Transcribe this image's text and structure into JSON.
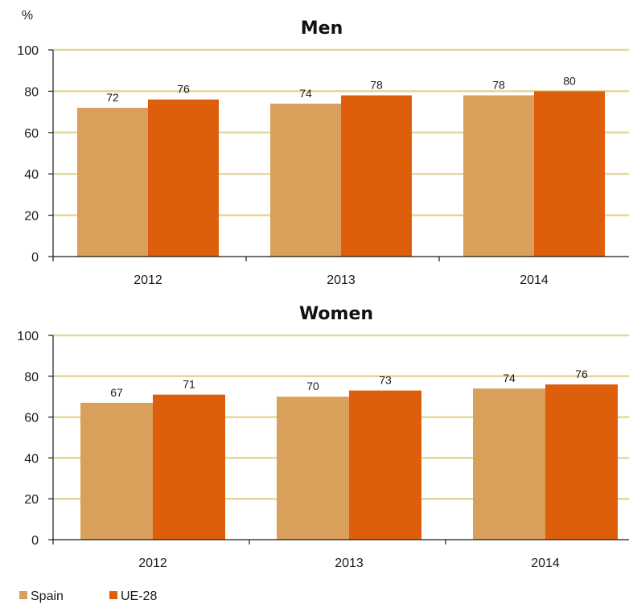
{
  "chart_data": [
    {
      "type": "bar",
      "title": "Men",
      "ylabel": "%",
      "categories": [
        "2012",
        "2013",
        "2014"
      ],
      "ylim": [
        0,
        100
      ],
      "yticks": [
        "0",
        "20",
        "40",
        "60",
        "80",
        "100"
      ],
      "grid": true,
      "series": [
        {
          "name": "Spain",
          "values": [
            72,
            74,
            78
          ]
        },
        {
          "name": "UE-28",
          "values": [
            76,
            78,
            80
          ]
        }
      ]
    },
    {
      "type": "bar",
      "title": "Women",
      "ylabel": "",
      "categories": [
        "2012",
        "2013",
        "2014"
      ],
      "ylim": [
        0,
        100
      ],
      "yticks": [
        "0",
        "20",
        "40",
        "60",
        "80",
        "100"
      ],
      "grid": true,
      "series": [
        {
          "name": "Spain",
          "values": [
            67,
            70,
            74
          ]
        },
        {
          "name": "UE-28",
          "values": [
            71,
            73,
            76
          ]
        }
      ]
    }
  ],
  "legend": {
    "placement": "bottom-left",
    "items": [
      {
        "label": "Spain",
        "color": "#d9a05b"
      },
      {
        "label": "UE-28",
        "color": "#de5f0b"
      }
    ]
  },
  "colors": {
    "spain": "#d9a05b",
    "ue28": "#de5f0b",
    "gridline": "#e3d79a",
    "axis": "#1a1a1a"
  }
}
